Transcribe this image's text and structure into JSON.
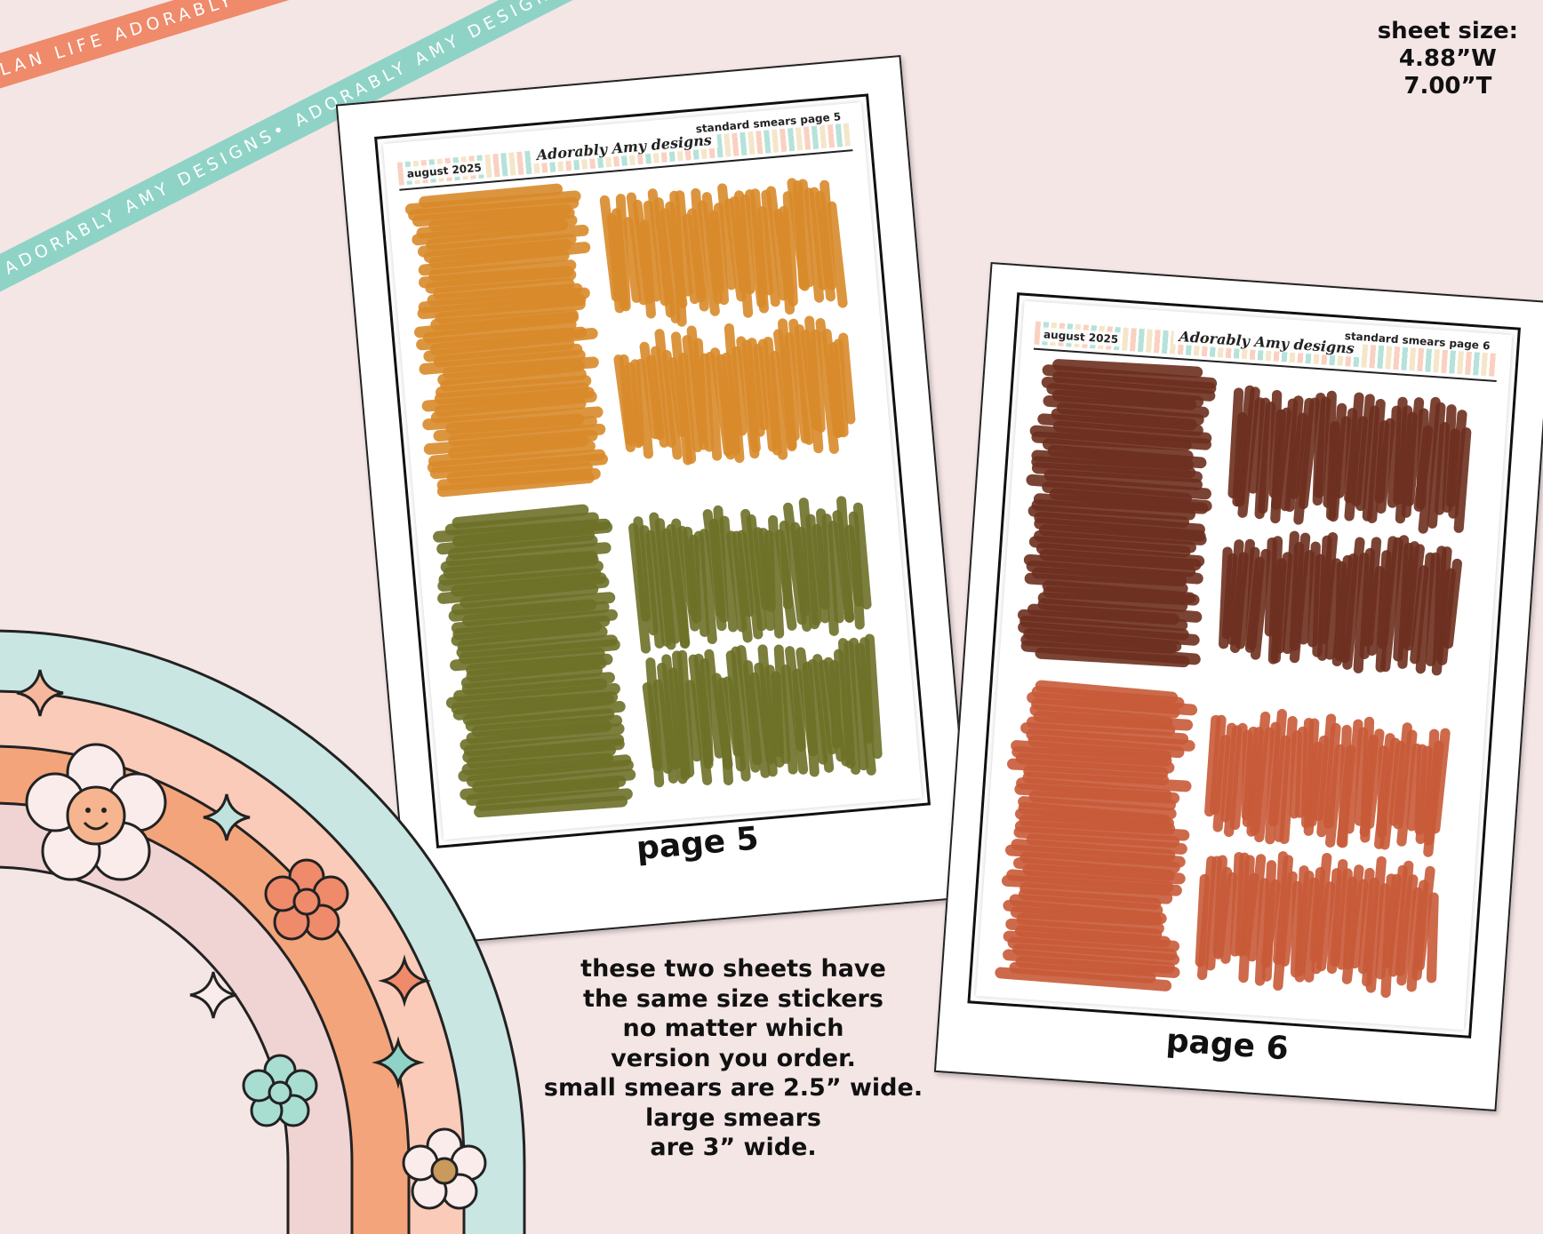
{
  "ribbons": {
    "coral": "PLAN LIFE ADORABLY • PLAN LIFE ADORABLY • PLAN LIFE ADORABLY",
    "teal": "ADORABLY AMY DESIGNS• ADORABLY AMY DESIGNS• ADORABLY AMY DESIGNS•"
  },
  "sheet_size": {
    "label": "sheet size:",
    "width": "4.88”W",
    "height": "7.00”T"
  },
  "sheets": [
    {
      "date": "august 2025",
      "brand": "Adorably Amy designs",
      "title": "standard smears page 5",
      "page_label": "page 5",
      "colors": [
        "#d98a2b",
        "#6d7128"
      ]
    },
    {
      "date": "august 2025",
      "brand": "Adorably Amy designs",
      "title": "standard smears page 6",
      "page_label": "page 6",
      "colors": [
        "#6d2f1f",
        "#c85a38"
      ]
    }
  ],
  "caption_lines": [
    "these two sheets have",
    "the same size stickers",
    "no matter which",
    "version you order.",
    "small smears are 2.5” wide.",
    "large smears",
    "are 3” wide."
  ],
  "palette": {
    "background": "#f5e6e6",
    "coral": "#ef8a6b",
    "teal": "#8fd3c7",
    "peach": "#f9c9b6",
    "orange": "#f3a47a",
    "pink": "#f0d3d3"
  }
}
